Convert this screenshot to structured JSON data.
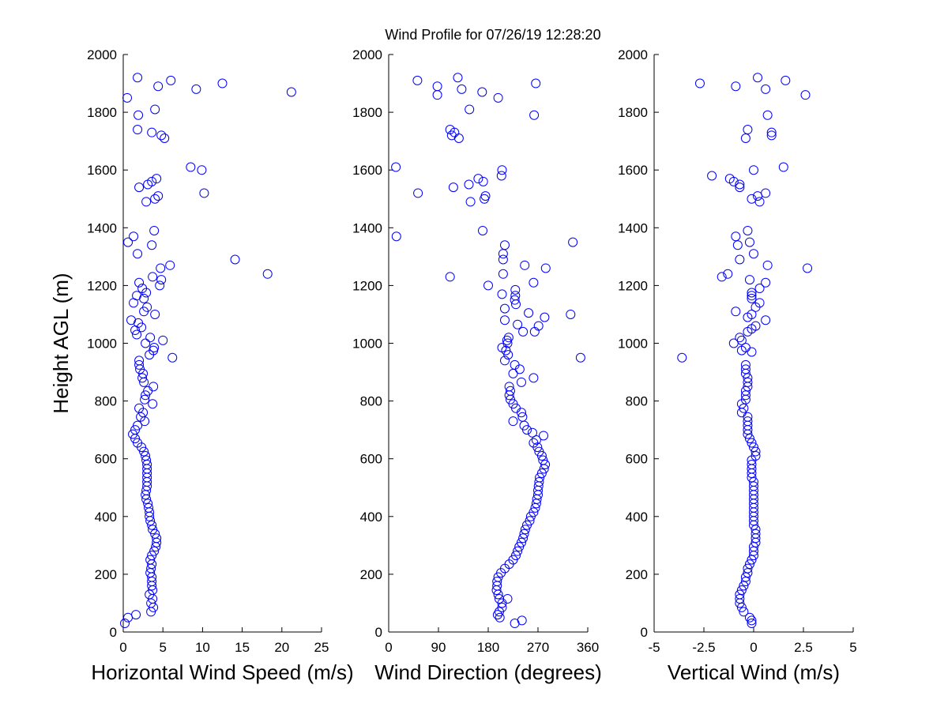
{
  "title": "Wind Profile for  07/26/19 12:28:20",
  "chart_data": [
    {
      "type": "scatter",
      "xlabel": "Horizontal Wind Speed (m/s)",
      "ylabel": "Height AGL (m)",
      "xlim": [
        0,
        25
      ],
      "ylim": [
        0,
        2000
      ],
      "xticks": [
        "0",
        "5",
        "10",
        "15",
        "20",
        "25"
      ],
      "yticks": [
        "0",
        "200",
        "400",
        "600",
        "800",
        "1000",
        "1200",
        "1400",
        "1600",
        "1800",
        "2000"
      ],
      "grid": false,
      "points": [
        [
          3.5,
          70
        ],
        [
          3.8,
          85
        ],
        [
          3.5,
          100
        ],
        [
          3.7,
          115
        ],
        [
          3.3,
          130
        ],
        [
          3.7,
          145
        ],
        [
          3.6,
          160
        ],
        [
          3.6,
          175
        ],
        [
          3.6,
          190
        ],
        [
          3.4,
          205
        ],
        [
          3.5,
          220
        ],
        [
          3.6,
          235
        ],
        [
          3.4,
          250
        ],
        [
          3.6,
          265
        ],
        [
          3.9,
          280
        ],
        [
          4.1,
          295
        ],
        [
          4.2,
          310
        ],
        [
          4.2,
          325
        ],
        [
          4.0,
          340
        ],
        [
          3.7,
          355
        ],
        [
          3.6,
          370
        ],
        [
          3.4,
          385
        ],
        [
          3.3,
          400
        ],
        [
          3.3,
          415
        ],
        [
          3.2,
          430
        ],
        [
          3.1,
          445
        ],
        [
          2.9,
          460
        ],
        [
          2.8,
          475
        ],
        [
          2.9,
          490
        ],
        [
          3.0,
          505
        ],
        [
          3.0,
          520
        ],
        [
          3.0,
          535
        ],
        [
          3.0,
          550
        ],
        [
          3.0,
          565
        ],
        [
          3.0,
          580
        ],
        [
          2.9,
          595
        ],
        [
          2.8,
          610
        ],
        [
          2.6,
          625
        ],
        [
          2.3,
          640
        ],
        [
          1.8,
          655
        ],
        [
          1.5,
          670
        ],
        [
          1.2,
          685
        ],
        [
          1.5,
          700
        ],
        [
          1.8,
          715
        ],
        [
          2.7,
          730
        ],
        [
          2.2,
          745
        ],
        [
          2.5,
          760
        ],
        [
          2.0,
          775
        ],
        [
          3.7,
          790
        ],
        [
          2.7,
          805
        ],
        [
          2.8,
          820
        ],
        [
          3.1,
          835
        ],
        [
          3.8,
          850
        ],
        [
          2.6,
          865
        ],
        [
          2.4,
          880
        ],
        [
          2.5,
          895
        ],
        [
          2.1,
          910
        ],
        [
          2.0,
          925
        ],
        [
          2.0,
          940
        ],
        [
          6.2,
          950
        ],
        [
          3.3,
          960
        ],
        [
          3.8,
          975
        ],
        [
          3.9,
          985
        ],
        [
          2.8,
          1000
        ],
        [
          5.0,
          1010
        ],
        [
          3.4,
          1020
        ],
        [
          1.7,
          1030
        ],
        [
          1.5,
          1045
        ],
        [
          2.3,
          1055
        ],
        [
          1.9,
          1070
        ],
        [
          1.0,
          1080
        ],
        [
          4.0,
          1100
        ],
        [
          2.6,
          1110
        ],
        [
          3.0,
          1125
        ],
        [
          1.3,
          1140
        ],
        [
          2.6,
          1155
        ],
        [
          1.7,
          1165
        ],
        [
          2.9,
          1175
        ],
        [
          2.4,
          1190
        ],
        [
          4.6,
          1200
        ],
        [
          2.0,
          1210
        ],
        [
          4.8,
          1220
        ],
        [
          3.7,
          1230
        ],
        [
          18.2,
          1240
        ],
        [
          4.7,
          1260
        ],
        [
          5.9,
          1270
        ],
        [
          14.1,
          1290
        ],
        [
          1.8,
          1310
        ],
        [
          0.6,
          1350
        ],
        [
          3.6,
          1340
        ],
        [
          1.3,
          1370
        ],
        [
          3.9,
          1390
        ],
        [
          2.9,
          1490
        ],
        [
          4.0,
          1500
        ],
        [
          4.4,
          1510
        ],
        [
          10.2,
          1520
        ],
        [
          2.0,
          1540
        ],
        [
          3.1,
          1550
        ],
        [
          3.6,
          1560
        ],
        [
          4.2,
          1570
        ],
        [
          9.9,
          1600
        ],
        [
          8.5,
          1610
        ],
        [
          5.2,
          1710
        ],
        [
          4.8,
          1720
        ],
        [
          3.6,
          1730
        ],
        [
          1.8,
          1740
        ],
        [
          1.9,
          1790
        ],
        [
          4.0,
          1810
        ],
        [
          0.5,
          1850
        ],
        [
          21.2,
          1870
        ],
        [
          9.2,
          1880
        ],
        [
          4.4,
          1890
        ],
        [
          12.5,
          1900
        ],
        [
          6.0,
          1910
        ],
        [
          1.8,
          1920
        ],
        [
          1.6,
          60
        ],
        [
          0.6,
          50
        ],
        [
          0.2,
          30
        ]
      ]
    },
    {
      "type": "scatter",
      "xlabel": "Wind Direction (degrees)",
      "ylabel": "",
      "xlim": [
        0,
        360
      ],
      "ylim": [
        0,
        2000
      ],
      "xticks": [
        "0",
        "90",
        "180",
        "270",
        "360"
      ],
      "yticks": [
        "0",
        "200",
        "400",
        "600",
        "800",
        "1000",
        "1200",
        "1400",
        "1600",
        "1800",
        "2000"
      ],
      "grid": false,
      "points": [
        [
          200,
          70
        ],
        [
          205,
          85
        ],
        [
          205,
          100
        ],
        [
          200,
          115
        ],
        [
          198,
          130
        ],
        [
          195,
          145
        ],
        [
          196,
          160
        ],
        [
          196,
          175
        ],
        [
          198,
          190
        ],
        [
          203,
          205
        ],
        [
          210,
          220
        ],
        [
          218,
          235
        ],
        [
          225,
          250
        ],
        [
          230,
          265
        ],
        [
          233,
          280
        ],
        [
          236,
          295
        ],
        [
          240,
          310
        ],
        [
          243,
          325
        ],
        [
          245,
          340
        ],
        [
          247,
          355
        ],
        [
          250,
          370
        ],
        [
          255,
          385
        ],
        [
          257,
          400
        ],
        [
          262,
          415
        ],
        [
          265,
          430
        ],
        [
          267,
          445
        ],
        [
          268,
          460
        ],
        [
          270,
          475
        ],
        [
          270,
          490
        ],
        [
          271,
          505
        ],
        [
          272,
          520
        ],
        [
          273,
          535
        ],
        [
          277,
          550
        ],
        [
          281,
          565
        ],
        [
          283,
          580
        ],
        [
          279,
          595
        ],
        [
          277,
          610
        ],
        [
          272,
          625
        ],
        [
          269,
          640
        ],
        [
          262,
          655
        ],
        [
          267,
          665
        ],
        [
          280,
          680
        ],
        [
          260,
          690
        ],
        [
          250,
          700
        ],
        [
          245,
          715
        ],
        [
          225,
          730
        ],
        [
          242,
          745
        ],
        [
          240,
          760
        ],
        [
          230,
          775
        ],
        [
          225,
          790
        ],
        [
          220,
          805
        ],
        [
          218,
          820
        ],
        [
          220,
          835
        ],
        [
          218,
          850
        ],
        [
          240,
          865
        ],
        [
          262,
          880
        ],
        [
          225,
          895
        ],
        [
          237,
          910
        ],
        [
          228,
          925
        ],
        [
          210,
          940
        ],
        [
          347,
          950
        ],
        [
          216,
          960
        ],
        [
          212,
          975
        ],
        [
          205,
          985
        ],
        [
          215,
          1000
        ],
        [
          214,
          1010
        ],
        [
          217,
          1020
        ],
        [
          264,
          1040
        ],
        [
          243,
          1040
        ],
        [
          271,
          1060
        ],
        [
          233,
          1065
        ],
        [
          210,
          1080
        ],
        [
          282,
          1090
        ],
        [
          253,
          1105
        ],
        [
          329,
          1100
        ],
        [
          210,
          1120
        ],
        [
          230,
          1135
        ],
        [
          228,
          1150
        ],
        [
          229,
          1165
        ],
        [
          205,
          1170
        ],
        [
          229,
          1185
        ],
        [
          180,
          1200
        ],
        [
          262,
          1210
        ],
        [
          207,
          1240
        ],
        [
          111,
          1230
        ],
        [
          246,
          1270
        ],
        [
          284,
          1260
        ],
        [
          207,
          1290
        ],
        [
          207,
          1310
        ],
        [
          210,
          1340
        ],
        [
          333,
          1350
        ],
        [
          14,
          1370
        ],
        [
          170,
          1390
        ],
        [
          148,
          1490
        ],
        [
          173,
          1500
        ],
        [
          175,
          1510
        ],
        [
          53,
          1520
        ],
        [
          117,
          1540
        ],
        [
          145,
          1550
        ],
        [
          171,
          1560
        ],
        [
          162,
          1570
        ],
        [
          204,
          1580
        ],
        [
          205,
          1600
        ],
        [
          13,
          1610
        ],
        [
          127,
          1710
        ],
        [
          114,
          1720
        ],
        [
          119,
          1730
        ],
        [
          111,
          1740
        ],
        [
          263,
          1790
        ],
        [
          146,
          1810
        ],
        [
          88,
          1860
        ],
        [
          198,
          1850
        ],
        [
          169,
          1870
        ],
        [
          132,
          1880
        ],
        [
          88,
          1890
        ],
        [
          266,
          1900
        ],
        [
          52,
          1910
        ],
        [
          125,
          1920
        ],
        [
          201,
          50
        ],
        [
          197,
          60
        ],
        [
          241,
          40
        ],
        [
          228,
          30
        ],
        [
          215,
          115
        ]
      ]
    },
    {
      "type": "scatter",
      "xlabel": "Vertical Wind (m/s)",
      "ylabel": "",
      "xlim": [
        -5,
        5
      ],
      "ylim": [
        0,
        2000
      ],
      "xticks": [
        "-5",
        "-2.5",
        "0",
        "2.5",
        "5"
      ],
      "yticks": [
        "0",
        "200",
        "400",
        "600",
        "800",
        "1000",
        "1200",
        "1400",
        "1600",
        "1800",
        "2000"
      ],
      "grid": false,
      "points": [
        [
          -0.5,
          70
        ],
        [
          -0.6,
          85
        ],
        [
          -0.7,
          100
        ],
        [
          -0.7,
          115
        ],
        [
          -0.7,
          130
        ],
        [
          -0.6,
          145
        ],
        [
          -0.5,
          160
        ],
        [
          -0.4,
          175
        ],
        [
          -0.4,
          190
        ],
        [
          -0.3,
          205
        ],
        [
          -0.3,
          220
        ],
        [
          -0.2,
          235
        ],
        [
          -0.1,
          250
        ],
        [
          0.0,
          265
        ],
        [
          0.0,
          280
        ],
        [
          0.0,
          295
        ],
        [
          0.1,
          310
        ],
        [
          0.1,
          325
        ],
        [
          0.1,
          340
        ],
        [
          0.1,
          355
        ],
        [
          0.0,
          370
        ],
        [
          0.0,
          385
        ],
        [
          0.0,
          400
        ],
        [
          0.0,
          415
        ],
        [
          0.0,
          430
        ],
        [
          0.0,
          445
        ],
        [
          0.0,
          460
        ],
        [
          0.0,
          475
        ],
        [
          0.0,
          490
        ],
        [
          0.0,
          505
        ],
        [
          0.0,
          520
        ],
        [
          -0.1,
          535
        ],
        [
          -0.1,
          550
        ],
        [
          -0.1,
          565
        ],
        [
          -0.1,
          580
        ],
        [
          -0.1,
          595
        ],
        [
          0.1,
          610
        ],
        [
          0.1,
          625
        ],
        [
          0.0,
          640
        ],
        [
          -0.1,
          655
        ],
        [
          -0.2,
          670
        ],
        [
          -0.3,
          685
        ],
        [
          -0.3,
          700
        ],
        [
          -0.3,
          715
        ],
        [
          -0.3,
          730
        ],
        [
          -0.3,
          745
        ],
        [
          -0.6,
          760
        ],
        [
          -0.5,
          775
        ],
        [
          -0.6,
          790
        ],
        [
          -0.4,
          805
        ],
        [
          -0.4,
          820
        ],
        [
          -0.4,
          835
        ],
        [
          -0.3,
          850
        ],
        [
          -0.3,
          865
        ],
        [
          -0.3,
          880
        ],
        [
          -0.4,
          895
        ],
        [
          -0.4,
          910
        ],
        [
          -0.4,
          925
        ],
        [
          -3.6,
          950
        ],
        [
          -0.1,
          970
        ],
        [
          -0.6,
          975
        ],
        [
          -0.4,
          985
        ],
        [
          -1.0,
          1000
        ],
        [
          -0.6,
          1010
        ],
        [
          -0.7,
          1020
        ],
        [
          -0.3,
          1040
        ],
        [
          -0.1,
          1050
        ],
        [
          0.1,
          1060
        ],
        [
          0.6,
          1080
        ],
        [
          -0.3,
          1090
        ],
        [
          -0.1,
          1100
        ],
        [
          -0.9,
          1110
        ],
        [
          0.1,
          1125
        ],
        [
          0.3,
          1140
        ],
        [
          -0.1,
          1155
        ],
        [
          -0.1,
          1165
        ],
        [
          -0.1,
          1175
        ],
        [
          0.3,
          1190
        ],
        [
          0.6,
          1210
        ],
        [
          -0.2,
          1220
        ],
        [
          -1.3,
          1240
        ],
        [
          -1.6,
          1230
        ],
        [
          2.7,
          1260
        ],
        [
          0.7,
          1270
        ],
        [
          -0.7,
          1290
        ],
        [
          0.0,
          1310
        ],
        [
          -0.2,
          1350
        ],
        [
          -0.8,
          1340
        ],
        [
          -0.9,
          1370
        ],
        [
          -0.3,
          1390
        ],
        [
          0.3,
          1490
        ],
        [
          -0.1,
          1500
        ],
        [
          0.2,
          1510
        ],
        [
          0.6,
          1520
        ],
        [
          -0.7,
          1540
        ],
        [
          -0.7,
          1550
        ],
        [
          -1.0,
          1560
        ],
        [
          -1.2,
          1570
        ],
        [
          -2.1,
          1580
        ],
        [
          0.0,
          1600
        ],
        [
          1.5,
          1610
        ],
        [
          -0.4,
          1710
        ],
        [
          0.9,
          1720
        ],
        [
          0.9,
          1730
        ],
        [
          -0.3,
          1740
        ],
        [
          0.7,
          1790
        ],
        [
          2.6,
          1860
        ],
        [
          -0.9,
          1890
        ],
        [
          0.6,
          1880
        ],
        [
          -2.7,
          1900
        ],
        [
          1.6,
          1910
        ],
        [
          0.2,
          1920
        ],
        [
          -0.2,
          50
        ],
        [
          -0.1,
          40
        ],
        [
          -0.1,
          30
        ]
      ]
    }
  ]
}
